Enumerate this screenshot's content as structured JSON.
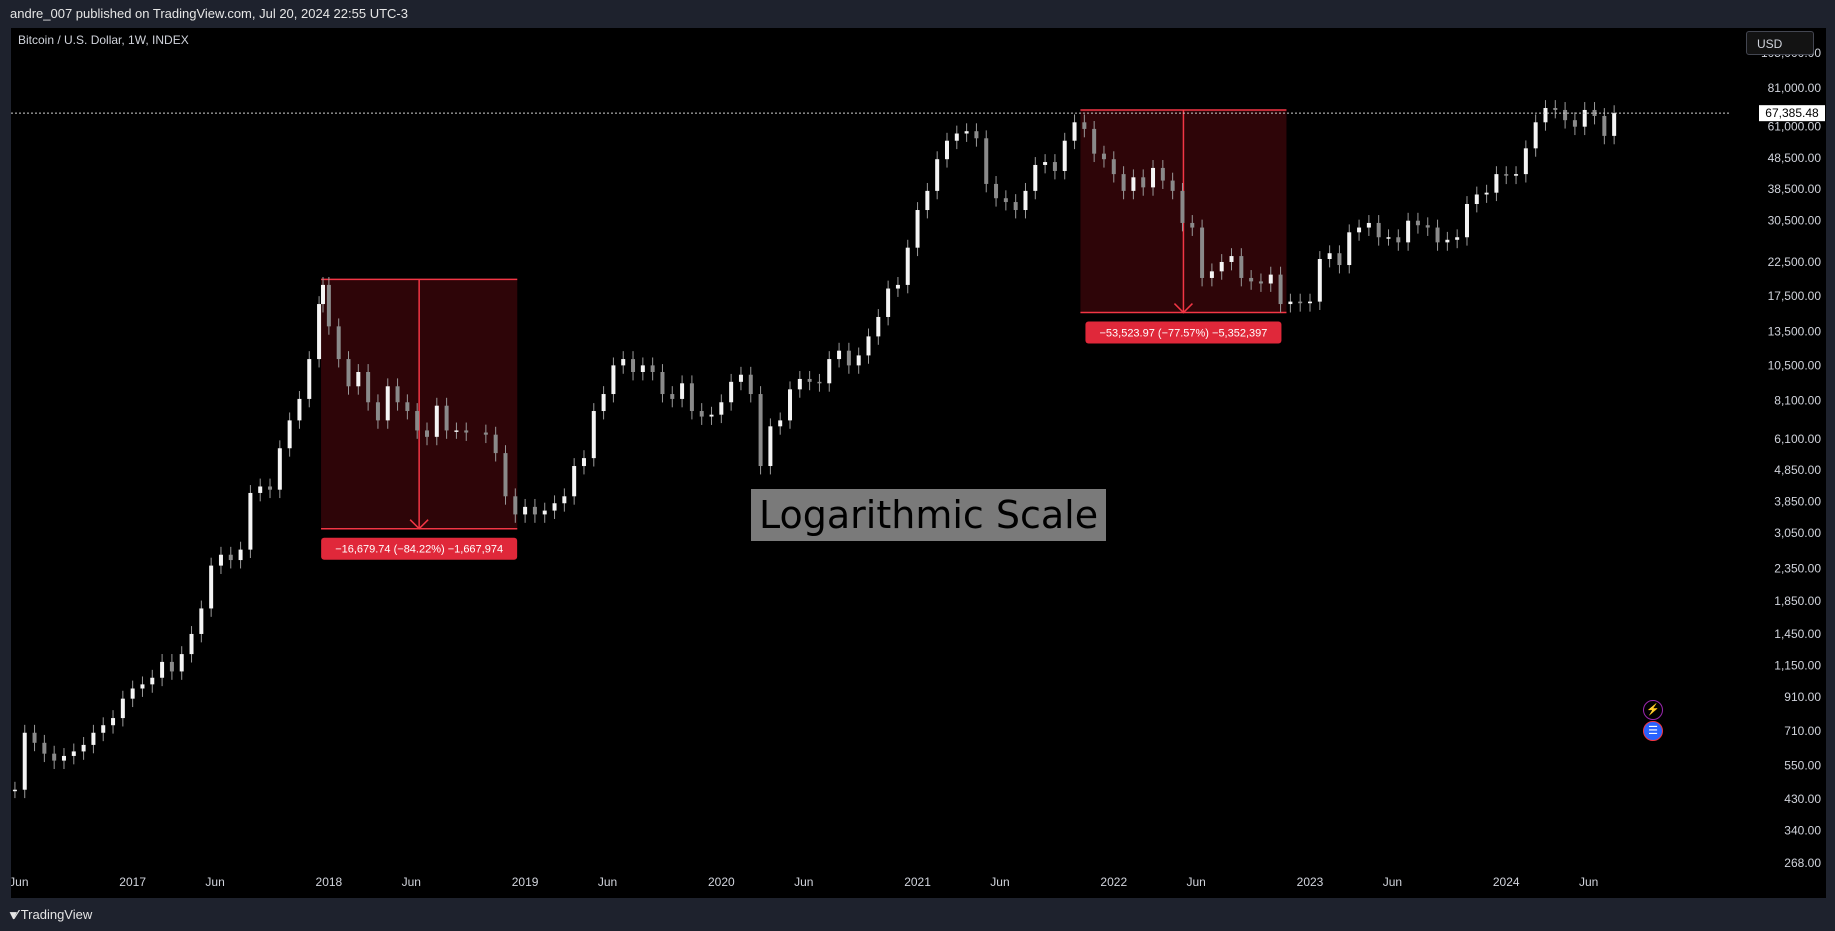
{
  "header": {
    "publish_info": "andre_007 published on TradingView.com, Jul 20, 2024 22:55 UTC-3"
  },
  "chart_header": {
    "symbol": "Bitcoin / U.S. Dollar, 1W, INDEX",
    "currency_button": "USD"
  },
  "annotation": {
    "scale_label": "Logarithmic Scale"
  },
  "footer": {
    "brand": "TradingView"
  },
  "colors": {
    "background": "#000000",
    "frame": "#1e222d",
    "measure": "#f23645",
    "measure_fill": "#2e0508",
    "candles": "#e0e0e0"
  },
  "icons": [
    "lightning-icon",
    "flag-icon",
    "tradingview-logo-icon"
  ],
  "chart_data": {
    "type": "line",
    "title": "Bitcoin / U.S. Dollar, 1W, INDEX",
    "scale": "log",
    "ylim": [
      268,
      105000
    ],
    "y_ticks": [
      "105,000.00",
      "81,000.00",
      "61,000.00",
      "48,500.00",
      "38,500.00",
      "30,500.00",
      "22,500.00",
      "17,500.00",
      "13,500.00",
      "10,500.00",
      "8,100.00",
      "6,100.00",
      "4,850.00",
      "3,850.00",
      "3,050.00",
      "2,350.00",
      "1,850.00",
      "1,450.00",
      "1,150.00",
      "910.00",
      "710.00",
      "550.00",
      "430.00",
      "340.00",
      "268.00"
    ],
    "x_ticks": [
      "Jun",
      "2017",
      "Jun",
      "2018",
      "Jun",
      "2019",
      "Jun",
      "2020",
      "Jun",
      "2021",
      "Jun",
      "2022",
      "Jun",
      "2023",
      "Jun",
      "2024",
      "Jun"
    ],
    "x_tick_dates": [
      2016.42,
      2017.0,
      2017.42,
      2018.0,
      2018.42,
      2019.0,
      2019.42,
      2020.0,
      2020.42,
      2021.0,
      2021.42,
      2022.0,
      2022.42,
      2023.0,
      2023.42,
      2024.0,
      2024.42
    ],
    "xlim": [
      2016.38,
      2025.12
    ],
    "current_price": {
      "label": "67,385.48",
      "value": 67385.48
    },
    "series": [
      {
        "points": [
          [
            2016.4,
            460
          ],
          [
            2016.45,
            700
          ],
          [
            2016.5,
            650
          ],
          [
            2016.55,
            600
          ],
          [
            2016.6,
            570
          ],
          [
            2016.65,
            590
          ],
          [
            2016.7,
            610
          ],
          [
            2016.75,
            640
          ],
          [
            2016.8,
            700
          ],
          [
            2016.85,
            740
          ],
          [
            2016.9,
            780
          ],
          [
            2016.95,
            900
          ],
          [
            2017.0,
            970
          ],
          [
            2017.05,
            1000
          ],
          [
            2017.1,
            1050
          ],
          [
            2017.15,
            1180
          ],
          [
            2017.2,
            1100
          ],
          [
            2017.25,
            1250
          ],
          [
            2017.3,
            1450
          ],
          [
            2017.35,
            1750
          ],
          [
            2017.4,
            2400
          ],
          [
            2017.45,
            2600
          ],
          [
            2017.5,
            2500
          ],
          [
            2017.55,
            2700
          ],
          [
            2017.6,
            4100
          ],
          [
            2017.65,
            4300
          ],
          [
            2017.7,
            4200
          ],
          [
            2017.75,
            5700
          ],
          [
            2017.8,
            7000
          ],
          [
            2017.85,
            8200
          ],
          [
            2017.9,
            11000
          ],
          [
            2017.95,
            16500
          ],
          [
            2017.97,
            19000
          ],
          [
            2018.0,
            14000
          ],
          [
            2018.05,
            11000
          ],
          [
            2018.1,
            9000
          ],
          [
            2018.15,
            10000
          ],
          [
            2018.2,
            8000
          ],
          [
            2018.25,
            7000
          ],
          [
            2018.3,
            9000
          ],
          [
            2018.35,
            8000
          ],
          [
            2018.4,
            7500
          ],
          [
            2018.45,
            6500
          ],
          [
            2018.5,
            6200
          ],
          [
            2018.55,
            7800
          ],
          [
            2018.6,
            6500
          ],
          [
            2018.65,
            6500
          ],
          [
            2018.7,
            6400
          ],
          [
            2018.8,
            6300
          ],
          [
            2018.85,
            5500
          ],
          [
            2018.9,
            4000
          ],
          [
            2018.95,
            3500
          ],
          [
            2019.0,
            3700
          ],
          [
            2019.05,
            3500
          ],
          [
            2019.1,
            3600
          ],
          [
            2019.15,
            3800
          ],
          [
            2019.2,
            4000
          ],
          [
            2019.25,
            5000
          ],
          [
            2019.3,
            5300
          ],
          [
            2019.35,
            7500
          ],
          [
            2019.4,
            8500
          ],
          [
            2019.45,
            10500
          ],
          [
            2019.5,
            11000
          ],
          [
            2019.55,
            10000
          ],
          [
            2019.6,
            10500
          ],
          [
            2019.65,
            10000
          ],
          [
            2019.7,
            8500
          ],
          [
            2019.75,
            8200
          ],
          [
            2019.8,
            9200
          ],
          [
            2019.85,
            7500
          ],
          [
            2019.9,
            7200
          ],
          [
            2019.95,
            7300
          ],
          [
            2020.0,
            8000
          ],
          [
            2020.05,
            9300
          ],
          [
            2020.1,
            9800
          ],
          [
            2020.15,
            8500
          ],
          [
            2020.2,
            5000
          ],
          [
            2020.25,
            6700
          ],
          [
            2020.3,
            7000
          ],
          [
            2020.35,
            8800
          ],
          [
            2020.4,
            9500
          ],
          [
            2020.45,
            9300
          ],
          [
            2020.5,
            9200
          ],
          [
            2020.55,
            11000
          ],
          [
            2020.6,
            11700
          ],
          [
            2020.65,
            10500
          ],
          [
            2020.7,
            11300
          ],
          [
            2020.75,
            13000
          ],
          [
            2020.8,
            15000
          ],
          [
            2020.85,
            18500
          ],
          [
            2020.9,
            19000
          ],
          [
            2020.95,
            25000
          ],
          [
            2021.0,
            33000
          ],
          [
            2021.05,
            38000
          ],
          [
            2021.1,
            48000
          ],
          [
            2021.15,
            55000
          ],
          [
            2021.2,
            58000
          ],
          [
            2021.25,
            59000
          ],
          [
            2021.3,
            56000
          ],
          [
            2021.35,
            40000
          ],
          [
            2021.4,
            36000
          ],
          [
            2021.45,
            35000
          ],
          [
            2021.5,
            33000
          ],
          [
            2021.55,
            38000
          ],
          [
            2021.6,
            46000
          ],
          [
            2021.65,
            47000
          ],
          [
            2021.7,
            44000
          ],
          [
            2021.75,
            55000
          ],
          [
            2021.8,
            63000
          ],
          [
            2021.85,
            60000
          ],
          [
            2021.9,
            50000
          ],
          [
            2021.95,
            48000
          ],
          [
            2022.0,
            43000
          ],
          [
            2022.05,
            38000
          ],
          [
            2022.1,
            42000
          ],
          [
            2022.15,
            39000
          ],
          [
            2022.2,
            45000
          ],
          [
            2022.25,
            41000
          ],
          [
            2022.3,
            38000
          ],
          [
            2022.35,
            30000
          ],
          [
            2022.4,
            29000
          ],
          [
            2022.45,
            20000
          ],
          [
            2022.5,
            21000
          ],
          [
            2022.55,
            22500
          ],
          [
            2022.6,
            23500
          ],
          [
            2022.65,
            20000
          ],
          [
            2022.7,
            19500
          ],
          [
            2022.75,
            19200
          ],
          [
            2022.8,
            20500
          ],
          [
            2022.85,
            16500
          ],
          [
            2022.9,
            16800
          ],
          [
            2022.95,
            16600
          ],
          [
            2023.0,
            16800
          ],
          [
            2023.05,
            23000
          ],
          [
            2023.1,
            24000
          ],
          [
            2023.15,
            22000
          ],
          [
            2023.2,
            28000
          ],
          [
            2023.25,
            29000
          ],
          [
            2023.3,
            30000
          ],
          [
            2023.35,
            27000
          ],
          [
            2023.4,
            27000
          ],
          [
            2023.45,
            26000
          ],
          [
            2023.5,
            30500
          ],
          [
            2023.55,
            29500
          ],
          [
            2023.6,
            29000
          ],
          [
            2023.65,
            26000
          ],
          [
            2023.7,
            26500
          ],
          [
            2023.75,
            27000
          ],
          [
            2023.8,
            34500
          ],
          [
            2023.85,
            37000
          ],
          [
            2023.9,
            37500
          ],
          [
            2023.95,
            43000
          ],
          [
            2024.0,
            42500
          ],
          [
            2024.05,
            43000
          ],
          [
            2024.1,
            52000
          ],
          [
            2024.15,
            63000
          ],
          [
            2024.2,
            70000
          ],
          [
            2024.25,
            69000
          ],
          [
            2024.3,
            64000
          ],
          [
            2024.35,
            61000
          ],
          [
            2024.4,
            69000
          ],
          [
            2024.45,
            66000
          ],
          [
            2024.5,
            57000
          ],
          [
            2024.55,
            67385
          ]
        ]
      }
    ],
    "measurements": [
      {
        "label": "−16,679.74 (−84.22%) −1,667,974",
        "x_start": 2017.96,
        "x_end": 2018.96,
        "y_high": 19800,
        "y_low": 3150
      },
      {
        "label": "−53,523.97 (−77.57%) −5,352,397",
        "x_start": 2021.83,
        "x_end": 2022.88,
        "y_high": 69000,
        "y_low": 15500
      }
    ]
  }
}
